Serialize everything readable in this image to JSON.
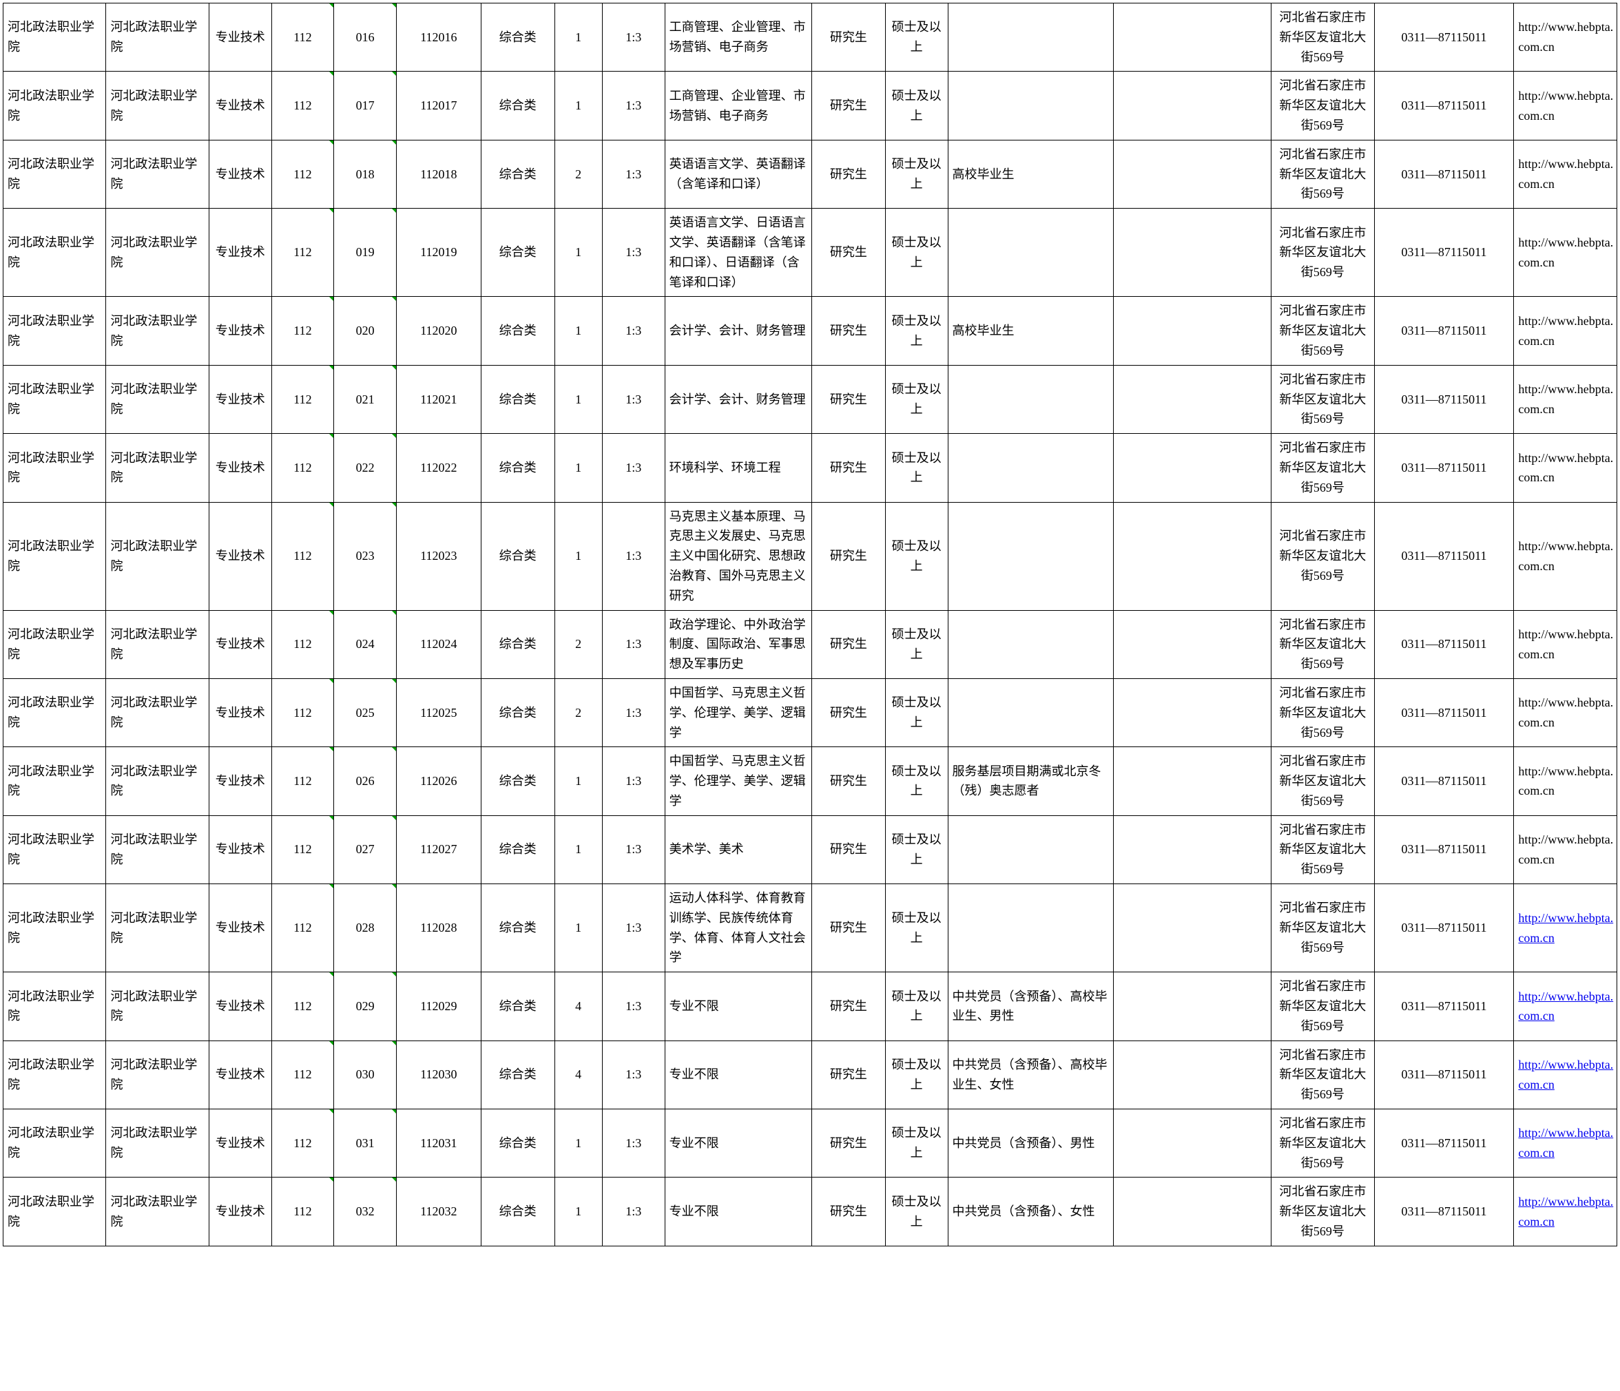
{
  "common": {
    "org": "河北政法职业学院",
    "dept": "河北政法职业学院",
    "job_type": "专业技术",
    "dept_code": "112",
    "exam_type": "综合类",
    "ratio": "1:3",
    "edu_level": "研究生",
    "degree": "硕士及以上",
    "address": "河北省石家庄市新华区友谊北大街569号",
    "phone": "0311—87115011",
    "url": "http://www.hebpta.com.cn"
  },
  "rows": [
    {
      "pos_code": "016",
      "full_code": "112016",
      "count": "1",
      "major": "工商管理、企业管理、市场营销、电子商务",
      "req": "",
      "link": false
    },
    {
      "pos_code": "017",
      "full_code": "112017",
      "count": "1",
      "major": "工商管理、企业管理、市场营销、电子商务",
      "req": "",
      "link": false
    },
    {
      "pos_code": "018",
      "full_code": "112018",
      "count": "2",
      "major": "英语语言文学、英语翻译（含笔译和口译）",
      "req": "高校毕业生",
      "link": false
    },
    {
      "pos_code": "019",
      "full_code": "112019",
      "count": "1",
      "major": "英语语言文学、日语语言文学、英语翻译（含笔译和口译）、日语翻译（含笔译和口译）",
      "req": "",
      "link": false
    },
    {
      "pos_code": "020",
      "full_code": "112020",
      "count": "1",
      "major": "会计学、会计、财务管理",
      "req": "高校毕业生",
      "link": false
    },
    {
      "pos_code": "021",
      "full_code": "112021",
      "count": "1",
      "major": "会计学、会计、财务管理",
      "req": "",
      "link": false
    },
    {
      "pos_code": "022",
      "full_code": "112022",
      "count": "1",
      "major": "环境科学、环境工程",
      "req": "",
      "link": false
    },
    {
      "pos_code": "023",
      "full_code": "112023",
      "count": "1",
      "major": "马克思主义基本原理、马克思主义发展史、马克思主义中国化研究、思想政治教育、国外马克思主义研究",
      "req": "",
      "link": false
    },
    {
      "pos_code": "024",
      "full_code": "112024",
      "count": "2",
      "major": "政治学理论、中外政治学制度、国际政治、军事思想及军事历史",
      "req": "",
      "link": false
    },
    {
      "pos_code": "025",
      "full_code": "112025",
      "count": "2",
      "major": "中国哲学、马克思主义哲学、伦理学、美学、逻辑学",
      "req": "",
      "link": false
    },
    {
      "pos_code": "026",
      "full_code": "112026",
      "count": "1",
      "major": "中国哲学、马克思主义哲学、伦理学、美学、逻辑学",
      "req": "服务基层项目期满或北京冬（残）奥志愿者",
      "link": false
    },
    {
      "pos_code": "027",
      "full_code": "112027",
      "count": "1",
      "major": "美术学、美术",
      "req": "",
      "link": false
    },
    {
      "pos_code": "028",
      "full_code": "112028",
      "count": "1",
      "major": "运动人体科学、体育教育训练学、民族传统体育学、体育、体育人文社会学",
      "req": "",
      "link": true
    },
    {
      "pos_code": "029",
      "full_code": "112029",
      "count": "4",
      "major": "专业不限",
      "req": "中共党员（含预备）、高校毕业生、男性",
      "link": true
    },
    {
      "pos_code": "030",
      "full_code": "112030",
      "count": "4",
      "major": "专业不限",
      "req": "中共党员（含预备）、高校毕业生、女性",
      "link": true
    },
    {
      "pos_code": "031",
      "full_code": "112031",
      "count": "1",
      "major": "专业不限",
      "req": "中共党员（含预备）、男性",
      "link": true
    },
    {
      "pos_code": "032",
      "full_code": "112032",
      "count": "1",
      "major": "专业不限",
      "req": "中共党员（含预备）、女性",
      "link": true
    }
  ],
  "col_classes": [
    "c0",
    "c1",
    "c2",
    "c3",
    "c4",
    "c5",
    "c6",
    "c7",
    "c8",
    "c9",
    "c10",
    "c11",
    "c12",
    "c13",
    "c14",
    "c15",
    "c16"
  ]
}
